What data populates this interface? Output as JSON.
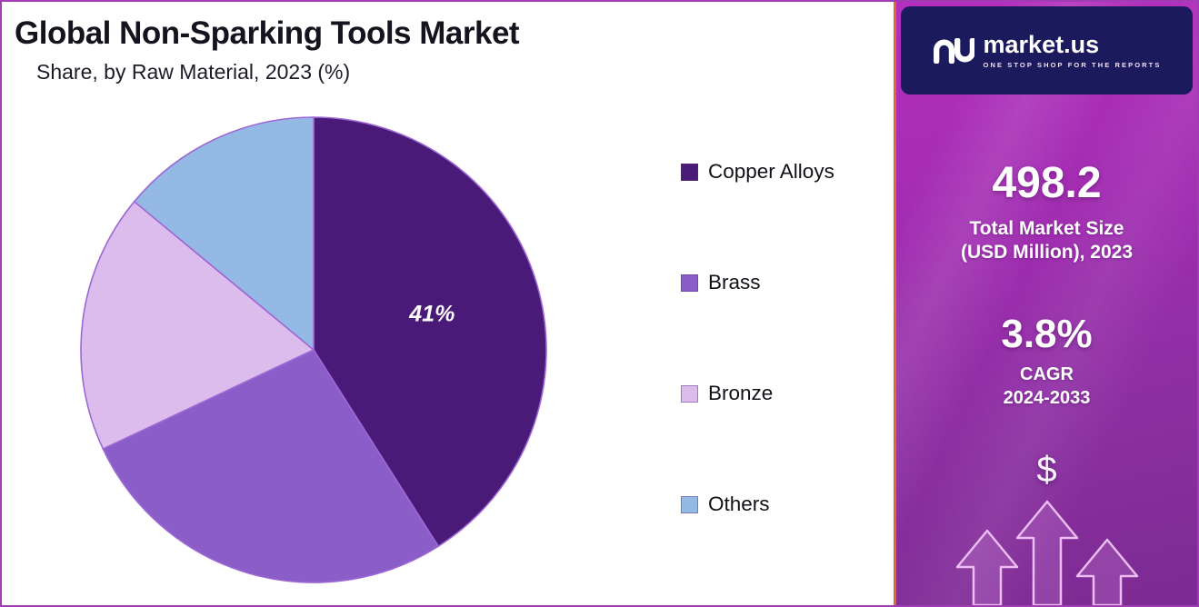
{
  "chart_data": {
    "type": "pie",
    "title": "Global Non-Sparking Tools Market",
    "subtitle": "Share, by Raw Material, 2023 (%)",
    "direction": "clockwise",
    "start_angle_deg": 0,
    "legend_position": "right",
    "slices": [
      {
        "label": "Copper Alloys",
        "value": 41,
        "color": "#4a1a78",
        "data_label": "41%"
      },
      {
        "label": "Brass",
        "value": 27,
        "color": "#8a5dc8",
        "data_label": ""
      },
      {
        "label": "Bronze",
        "value": 18,
        "color": "#dcbcec",
        "data_label": ""
      },
      {
        "label": "Others",
        "value": 14,
        "color": "#95b9e5",
        "data_label": ""
      }
    ]
  },
  "sidebar": {
    "logo": {
      "brand": "market.us",
      "tagline": "ONE STOP SHOP FOR THE REPORTS"
    },
    "market_size": {
      "value": "498.2",
      "label_line1": "Total Market Size",
      "label_line2": "(USD Million), 2023"
    },
    "cagr": {
      "value": "3.8%",
      "label_line1": "CAGR",
      "label_line2": "2024-2033"
    },
    "dollar_symbol": "$"
  },
  "colors": {
    "copper_alloys": "#4a1a78",
    "brass": "#8a5dc8",
    "bronze": "#dcbcec",
    "others": "#95b9e5",
    "pie_stroke": "#9e68d4",
    "page_border": "#a13cb4",
    "sidebar_gradient_top": "#b42fbe",
    "sidebar_gradient_bottom": "#7c2b92",
    "sidebar_divider": "#e06a2e",
    "logo_box_bg": "#1b1a5c"
  }
}
